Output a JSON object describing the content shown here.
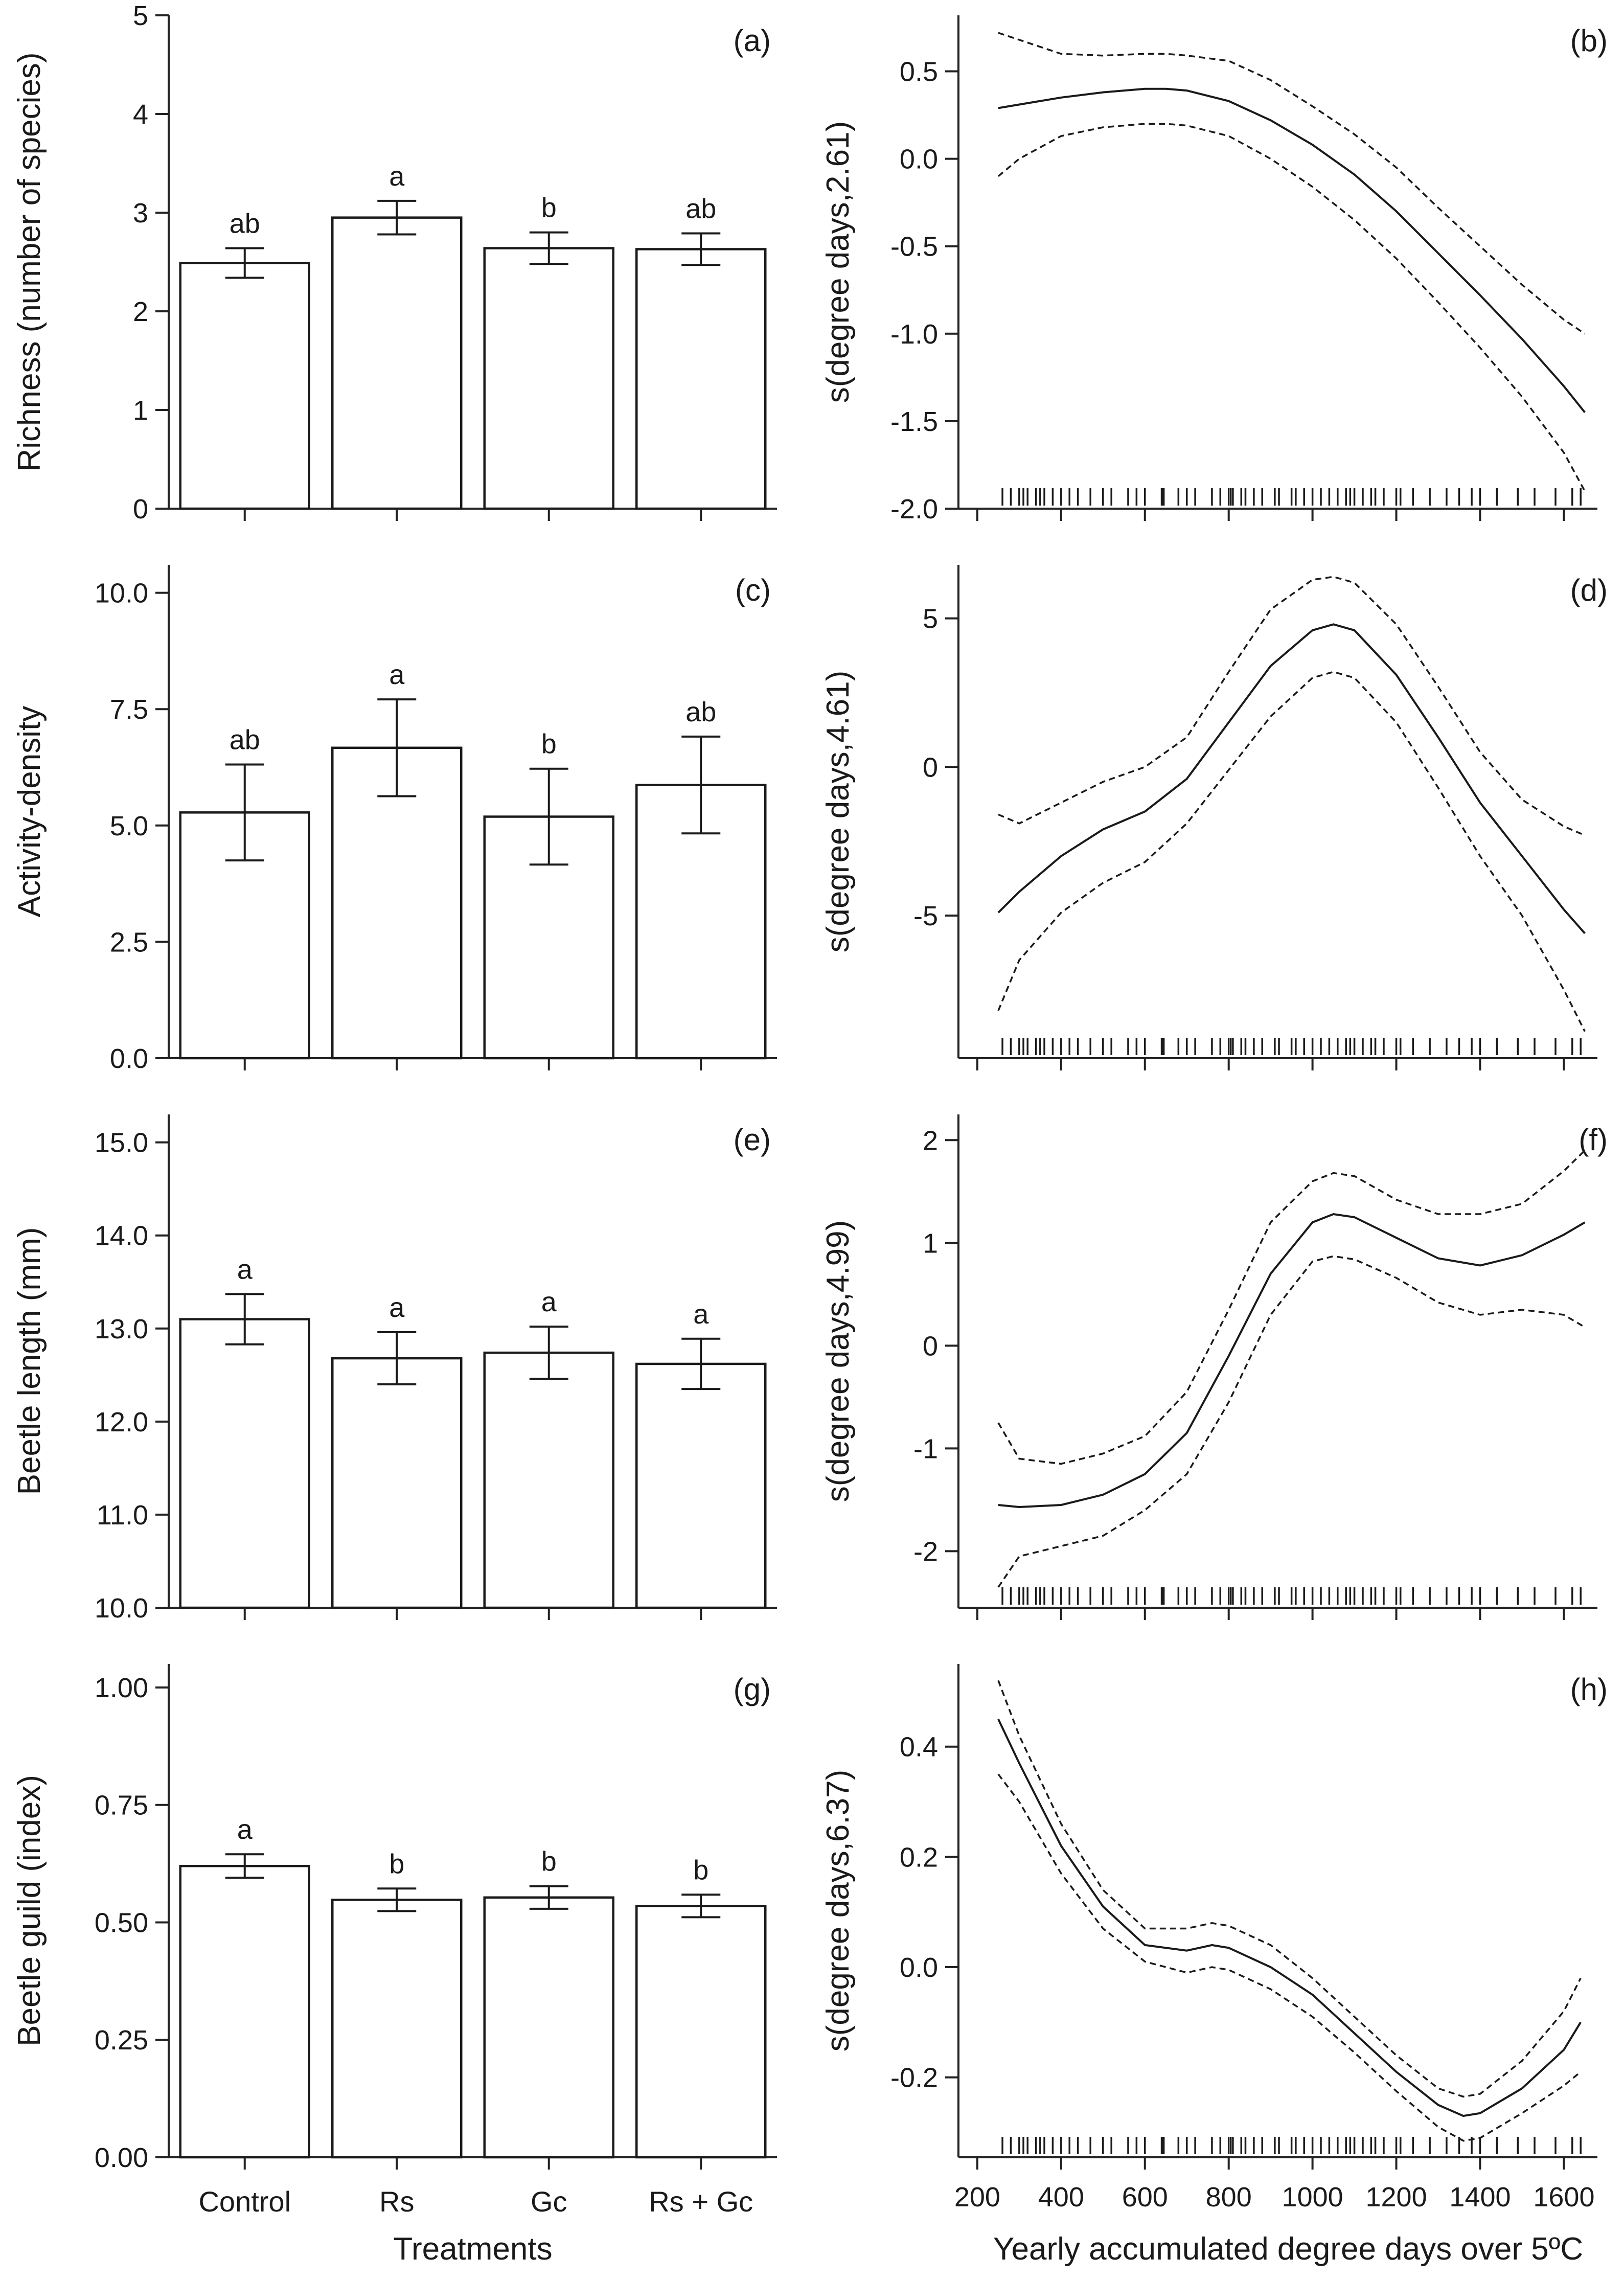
{
  "chart_data": [
    {
      "panel": "(a)",
      "type": "bar",
      "ylabel": "Richness (number of species)",
      "categories": [
        "Control",
        "Rs",
        "Gc",
        "Rs + Gc"
      ],
      "values": [
        2.49,
        2.95,
        2.64,
        2.63
      ],
      "errors": [
        0.15,
        0.17,
        0.16,
        0.16
      ],
      "letters": [
        "ab",
        "a",
        "b",
        "ab"
      ],
      "ylim": [
        0,
        5
      ],
      "bar_base": 0,
      "yticks": [
        0,
        1,
        2,
        3,
        4,
        5
      ],
      "ytick_labels": [
        "0",
        "1",
        "2",
        "3",
        "4",
        "5"
      ]
    },
    {
      "panel": "(c)",
      "type": "bar",
      "ylabel": "Activity-density",
      "categories": [
        "Control",
        "Rs",
        "Gc",
        "Rs + Gc"
      ],
      "values": [
        5.28,
        6.67,
        5.19,
        5.87
      ],
      "errors": [
        1.03,
        1.04,
        1.03,
        1.04
      ],
      "letters": [
        "ab",
        "a",
        "b",
        "ab"
      ],
      "ylim": [
        0,
        10.6
      ],
      "bar_base": 0,
      "yticks": [
        0,
        2.5,
        5,
        7.5,
        10
      ],
      "ytick_labels": [
        "0.0",
        "2.5",
        "5.0",
        "7.5",
        "10.0"
      ]
    },
    {
      "panel": "(e)",
      "type": "bar",
      "ylabel": "Beetle length (mm)",
      "categories": [
        "Control",
        "Rs",
        "Gc",
        "Rs + Gc"
      ],
      "values": [
        13.1,
        12.68,
        12.74,
        12.62
      ],
      "errors": [
        0.27,
        0.28,
        0.28,
        0.27
      ],
      "letters": [
        "a",
        "a",
        "a",
        "a"
      ],
      "ylim": [
        10,
        15.3
      ],
      "bar_base": 10,
      "yticks": [
        10,
        11,
        12,
        13,
        14,
        15
      ],
      "ytick_labels": [
        "10.0",
        "11.0",
        "12.0",
        "13.0",
        "14.0",
        "15.0"
      ]
    },
    {
      "panel": "(g)",
      "type": "bar",
      "ylabel": "Beetle guild (index)",
      "categories": [
        "Control",
        "Rs",
        "Gc",
        "Rs + Gc"
      ],
      "values": [
        0.62,
        0.548,
        0.553,
        0.535
      ],
      "errors": [
        0.025,
        0.024,
        0.024,
        0.024
      ],
      "letters": [
        "a",
        "b",
        "b",
        "b"
      ],
      "ylim": [
        0,
        1.05
      ],
      "bar_base": 0,
      "yticks": [
        0,
        0.25,
        0.5,
        0.75,
        1
      ],
      "ytick_labels": [
        "0.00",
        "0.25",
        "0.50",
        "0.75",
        "1.00"
      ],
      "xlabel": "Treatments"
    },
    {
      "panel": "(b)",
      "type": "line",
      "ylabel": "s(degree days,2.61)",
      "xlim": [
        155,
        1680
      ],
      "ylim": [
        -2.0,
        0.82
      ],
      "yticks": [
        -2,
        -1.5,
        -1,
        -0.5,
        0,
        0.5
      ],
      "ytick_labels": [
        "-2.0",
        "-1.5",
        "-1.0",
        "-0.5",
        "0.0",
        "0.5"
      ],
      "xticks": [
        200,
        400,
        600,
        800,
        1000,
        1200,
        1400,
        1600
      ],
      "x": [
        250,
        300,
        400,
        500,
        600,
        650,
        700,
        800,
        900,
        1000,
        1100,
        1200,
        1300,
        1400,
        1500,
        1600,
        1650
      ],
      "fit": [
        0.29,
        0.31,
        0.35,
        0.38,
        0.4,
        0.4,
        0.39,
        0.33,
        0.22,
        0.08,
        -0.09,
        -0.3,
        -0.54,
        -0.78,
        -1.03,
        -1.3,
        -1.45
      ],
      "upper": [
        0.72,
        0.68,
        0.6,
        0.59,
        0.6,
        0.6,
        0.59,
        0.56,
        0.45,
        0.3,
        0.14,
        -0.05,
        -0.28,
        -0.5,
        -0.72,
        -0.92,
        -1.0
      ],
      "lower": [
        -0.1,
        0.0,
        0.13,
        0.18,
        0.2,
        0.2,
        0.19,
        0.13,
        0.0,
        -0.16,
        -0.35,
        -0.57,
        -0.82,
        -1.08,
        -1.36,
        -1.68,
        -1.9
      ]
    },
    {
      "panel": "(d)",
      "type": "line",
      "ylabel": "s(degree days,4.61)",
      "xlim": [
        155,
        1680
      ],
      "ylim": [
        -9.8,
        6.8
      ],
      "yticks": [
        -5,
        0,
        5
      ],
      "ytick_labels": [
        "-5",
        "0",
        "5"
      ],
      "xticks": [
        200,
        400,
        600,
        800,
        1000,
        1200,
        1400,
        1600
      ],
      "x": [
        250,
        300,
        400,
        500,
        600,
        700,
        800,
        900,
        1000,
        1050,
        1100,
        1200,
        1300,
        1400,
        1500,
        1600,
        1650
      ],
      "fit": [
        -4.9,
        -4.2,
        -3.0,
        -2.1,
        -1.5,
        -0.4,
        1.5,
        3.4,
        4.6,
        4.8,
        4.6,
        3.1,
        1.0,
        -1.2,
        -3.0,
        -4.8,
        -5.6
      ],
      "upper": [
        -1.6,
        -1.9,
        -1.2,
        -0.5,
        0.0,
        1.0,
        3.2,
        5.3,
        6.3,
        6.4,
        6.2,
        4.8,
        2.7,
        0.5,
        -1.1,
        -2.0,
        -2.3
      ],
      "lower": [
        -8.2,
        -6.5,
        -4.9,
        -3.9,
        -3.2,
        -1.9,
        -0.1,
        1.7,
        3.0,
        3.2,
        3.0,
        1.5,
        -0.7,
        -3.0,
        -5.0,
        -7.5,
        -8.9
      ]
    },
    {
      "panel": "(f)",
      "type": "line",
      "ylabel": "s(degree days,4.99)",
      "xlim": [
        155,
        1680
      ],
      "ylim": [
        -2.55,
        2.25
      ],
      "yticks": [
        -2,
        -1,
        0,
        1,
        2
      ],
      "ytick_labels": [
        "-2",
        "-1",
        "0",
        "1",
        "2"
      ],
      "xticks": [
        200,
        400,
        600,
        800,
        1000,
        1200,
        1400,
        1600
      ],
      "x": [
        250,
        300,
        400,
        500,
        600,
        700,
        800,
        900,
        1000,
        1050,
        1100,
        1200,
        1300,
        1400,
        1500,
        1600,
        1650
      ],
      "fit": [
        -1.55,
        -1.57,
        -1.55,
        -1.45,
        -1.25,
        -0.85,
        -0.1,
        0.7,
        1.2,
        1.28,
        1.25,
        1.05,
        0.85,
        0.78,
        0.88,
        1.08,
        1.2
      ],
      "upper": [
        -0.75,
        -1.1,
        -1.15,
        -1.05,
        -0.88,
        -0.45,
        0.35,
        1.2,
        1.6,
        1.68,
        1.65,
        1.42,
        1.28,
        1.28,
        1.38,
        1.7,
        1.9
      ],
      "lower": [
        -2.35,
        -2.05,
        -1.95,
        -1.85,
        -1.6,
        -1.25,
        -0.55,
        0.3,
        0.82,
        0.87,
        0.84,
        0.66,
        0.42,
        0.3,
        0.35,
        0.3,
        0.18
      ]
    },
    {
      "panel": "(h)",
      "type": "line",
      "ylabel": "s(degree days,6.37)",
      "xlim": [
        155,
        1680
      ],
      "ylim": [
        -0.345,
        0.55
      ],
      "yticks": [
        -0.2,
        0,
        0.2,
        0.4
      ],
      "ytick_labels": [
        "-0.2",
        "0.0",
        "0.2",
        "0.4"
      ],
      "xticks": [
        200,
        400,
        600,
        800,
        1000,
        1200,
        1400,
        1600
      ],
      "xtick_labels": [
        "200",
        "400",
        "600",
        "800",
        "1000",
        "1200",
        "1400",
        "1600"
      ],
      "x": [
        250,
        300,
        400,
        500,
        600,
        700,
        760,
        800,
        900,
        1000,
        1100,
        1200,
        1300,
        1360,
        1400,
        1500,
        1600,
        1640
      ],
      "fit": [
        0.45,
        0.37,
        0.22,
        0.11,
        0.04,
        0.03,
        0.04,
        0.035,
        0.0,
        -0.05,
        -0.12,
        -0.19,
        -0.25,
        -0.27,
        -0.265,
        -0.22,
        -0.15,
        -0.1
      ],
      "upper": [
        0.52,
        0.42,
        0.26,
        0.14,
        0.07,
        0.07,
        0.08,
        0.075,
        0.04,
        -0.02,
        -0.09,
        -0.16,
        -0.22,
        -0.235,
        -0.23,
        -0.17,
        -0.08,
        -0.02
      ],
      "lower": [
        0.35,
        0.3,
        0.17,
        0.07,
        0.01,
        -0.01,
        0.0,
        -0.005,
        -0.04,
        -0.09,
        -0.155,
        -0.225,
        -0.29,
        -0.315,
        -0.31,
        -0.265,
        -0.215,
        -0.19
      ],
      "xlabel": "Yearly accumulated degree days over 5ºC"
    }
  ],
  "rug_x": [
    260,
    280,
    300,
    310,
    320,
    340,
    350,
    360,
    380,
    400,
    420,
    440,
    470,
    500,
    520,
    560,
    580,
    600,
    640,
    641,
    642,
    645,
    680,
    700,
    720,
    760,
    780,
    800,
    805,
    810,
    830,
    840,
    860,
    880,
    910,
    920,
    950,
    960,
    980,
    1000,
    1020,
    1040,
    1060,
    1080,
    1090,
    1100,
    1120,
    1140,
    1150,
    1170,
    1200,
    1210,
    1240,
    1280,
    1320,
    1350,
    1380,
    1400,
    1440,
    1490,
    1530,
    1580,
    1620,
    1640
  ]
}
